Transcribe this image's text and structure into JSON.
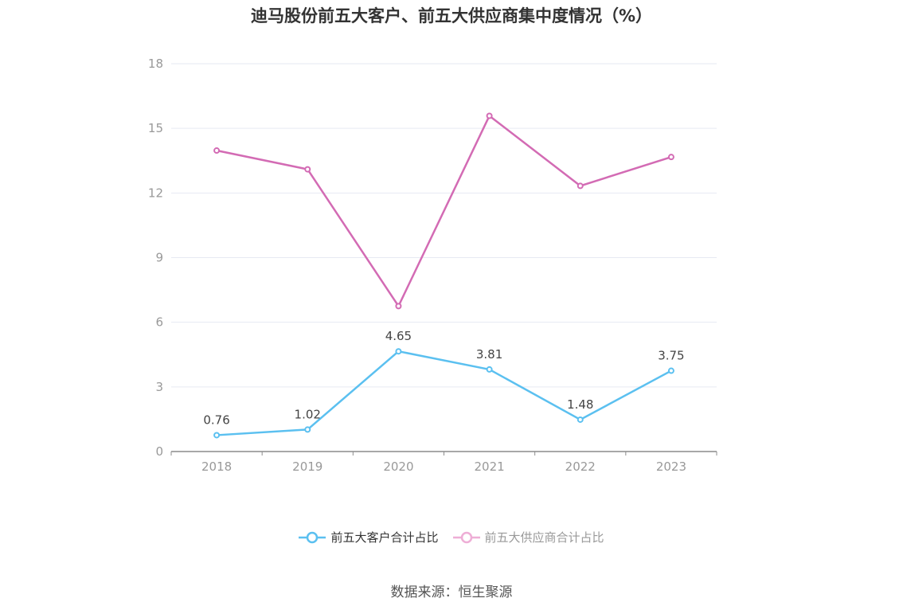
{
  "title": "迪马股份前五大客户、前五大供应商集中度情况（%）",
  "source": "数据来源：恒生聚源",
  "chart_data": {
    "type": "line",
    "categories": [
      "2018",
      "2019",
      "2020",
      "2021",
      "2022",
      "2023"
    ],
    "ylim": [
      0,
      18
    ],
    "yticks": [
      0,
      3,
      6,
      9,
      12,
      15,
      18
    ],
    "grid": true,
    "legend_position": "bottom-center",
    "series": [
      {
        "name": "前五大客户合计占比",
        "color": "#5bc0f0",
        "values": [
          0.76,
          1.02,
          4.65,
          3.81,
          1.48,
          3.75
        ],
        "labels": [
          "0.76",
          "1.02",
          "4.65",
          "3.81",
          "1.48",
          "3.75"
        ]
      },
      {
        "name": "前五大供应商合计占比",
        "color": "#d36bb4",
        "legend_color": "#eeaed6",
        "values": [
          13.97,
          13.1,
          6.75,
          15.58,
          12.33,
          13.67
        ]
      }
    ]
  }
}
